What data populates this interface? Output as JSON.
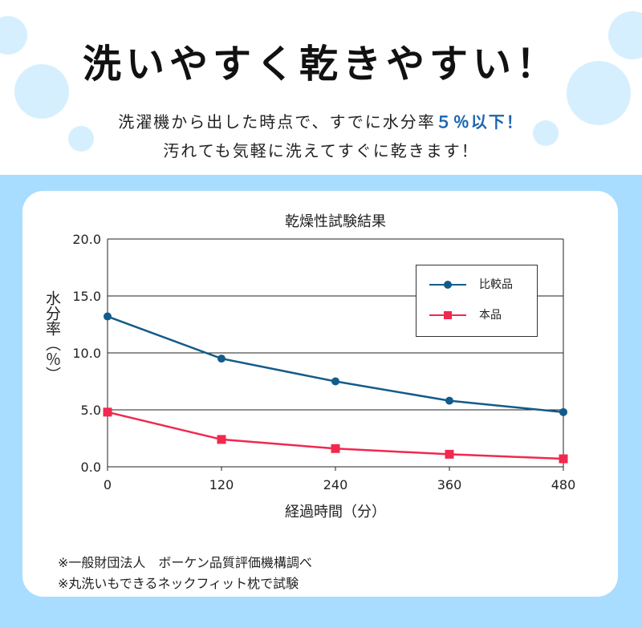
{
  "header": {
    "headline": "洗いやすく乾きやすい！",
    "line1_prefix": "洗濯機から出した時点で、すでに水分率",
    "line1_highlight": "５％以下！",
    "line2": "汚れても気軽に洗えてすぐに乾きます！",
    "highlight_color": "#1a64b0"
  },
  "colors": {
    "band": "#a8ddff",
    "bubble": "#d6efff",
    "comparison": "#135b8a",
    "product": "#f0294f"
  },
  "chart_data": {
    "type": "line",
    "title": "乾燥性試験結果",
    "xlabel": "経過時間（分）",
    "ylabel": "水分率（％）",
    "x": [
      0,
      120,
      240,
      360,
      480
    ],
    "x_tick_labels": [
      "0",
      "120",
      "240",
      "360",
      "480"
    ],
    "y_tick_labels": [
      "0.0",
      "5.0",
      "10.0",
      "15.0",
      "20.0"
    ],
    "y_ticks": [
      0,
      5,
      10,
      15,
      20
    ],
    "xlim": [
      0,
      480
    ],
    "ylim": [
      0,
      20
    ],
    "grid": "horizontal",
    "legend_position": "top-right",
    "series": [
      {
        "name": "比較品",
        "values": [
          13.2,
          9.5,
          7.5,
          5.8,
          4.8
        ],
        "marker": "circle",
        "color": "#135b8a"
      },
      {
        "name": "本品",
        "values": [
          4.8,
          2.4,
          1.6,
          1.1,
          0.7
        ],
        "marker": "square",
        "color": "#f0294f"
      }
    ]
  },
  "notes": [
    "※一般財団法人　ボーケン品質評価機構調べ",
    "※丸洗いもできるネックフィット枕で試験"
  ]
}
